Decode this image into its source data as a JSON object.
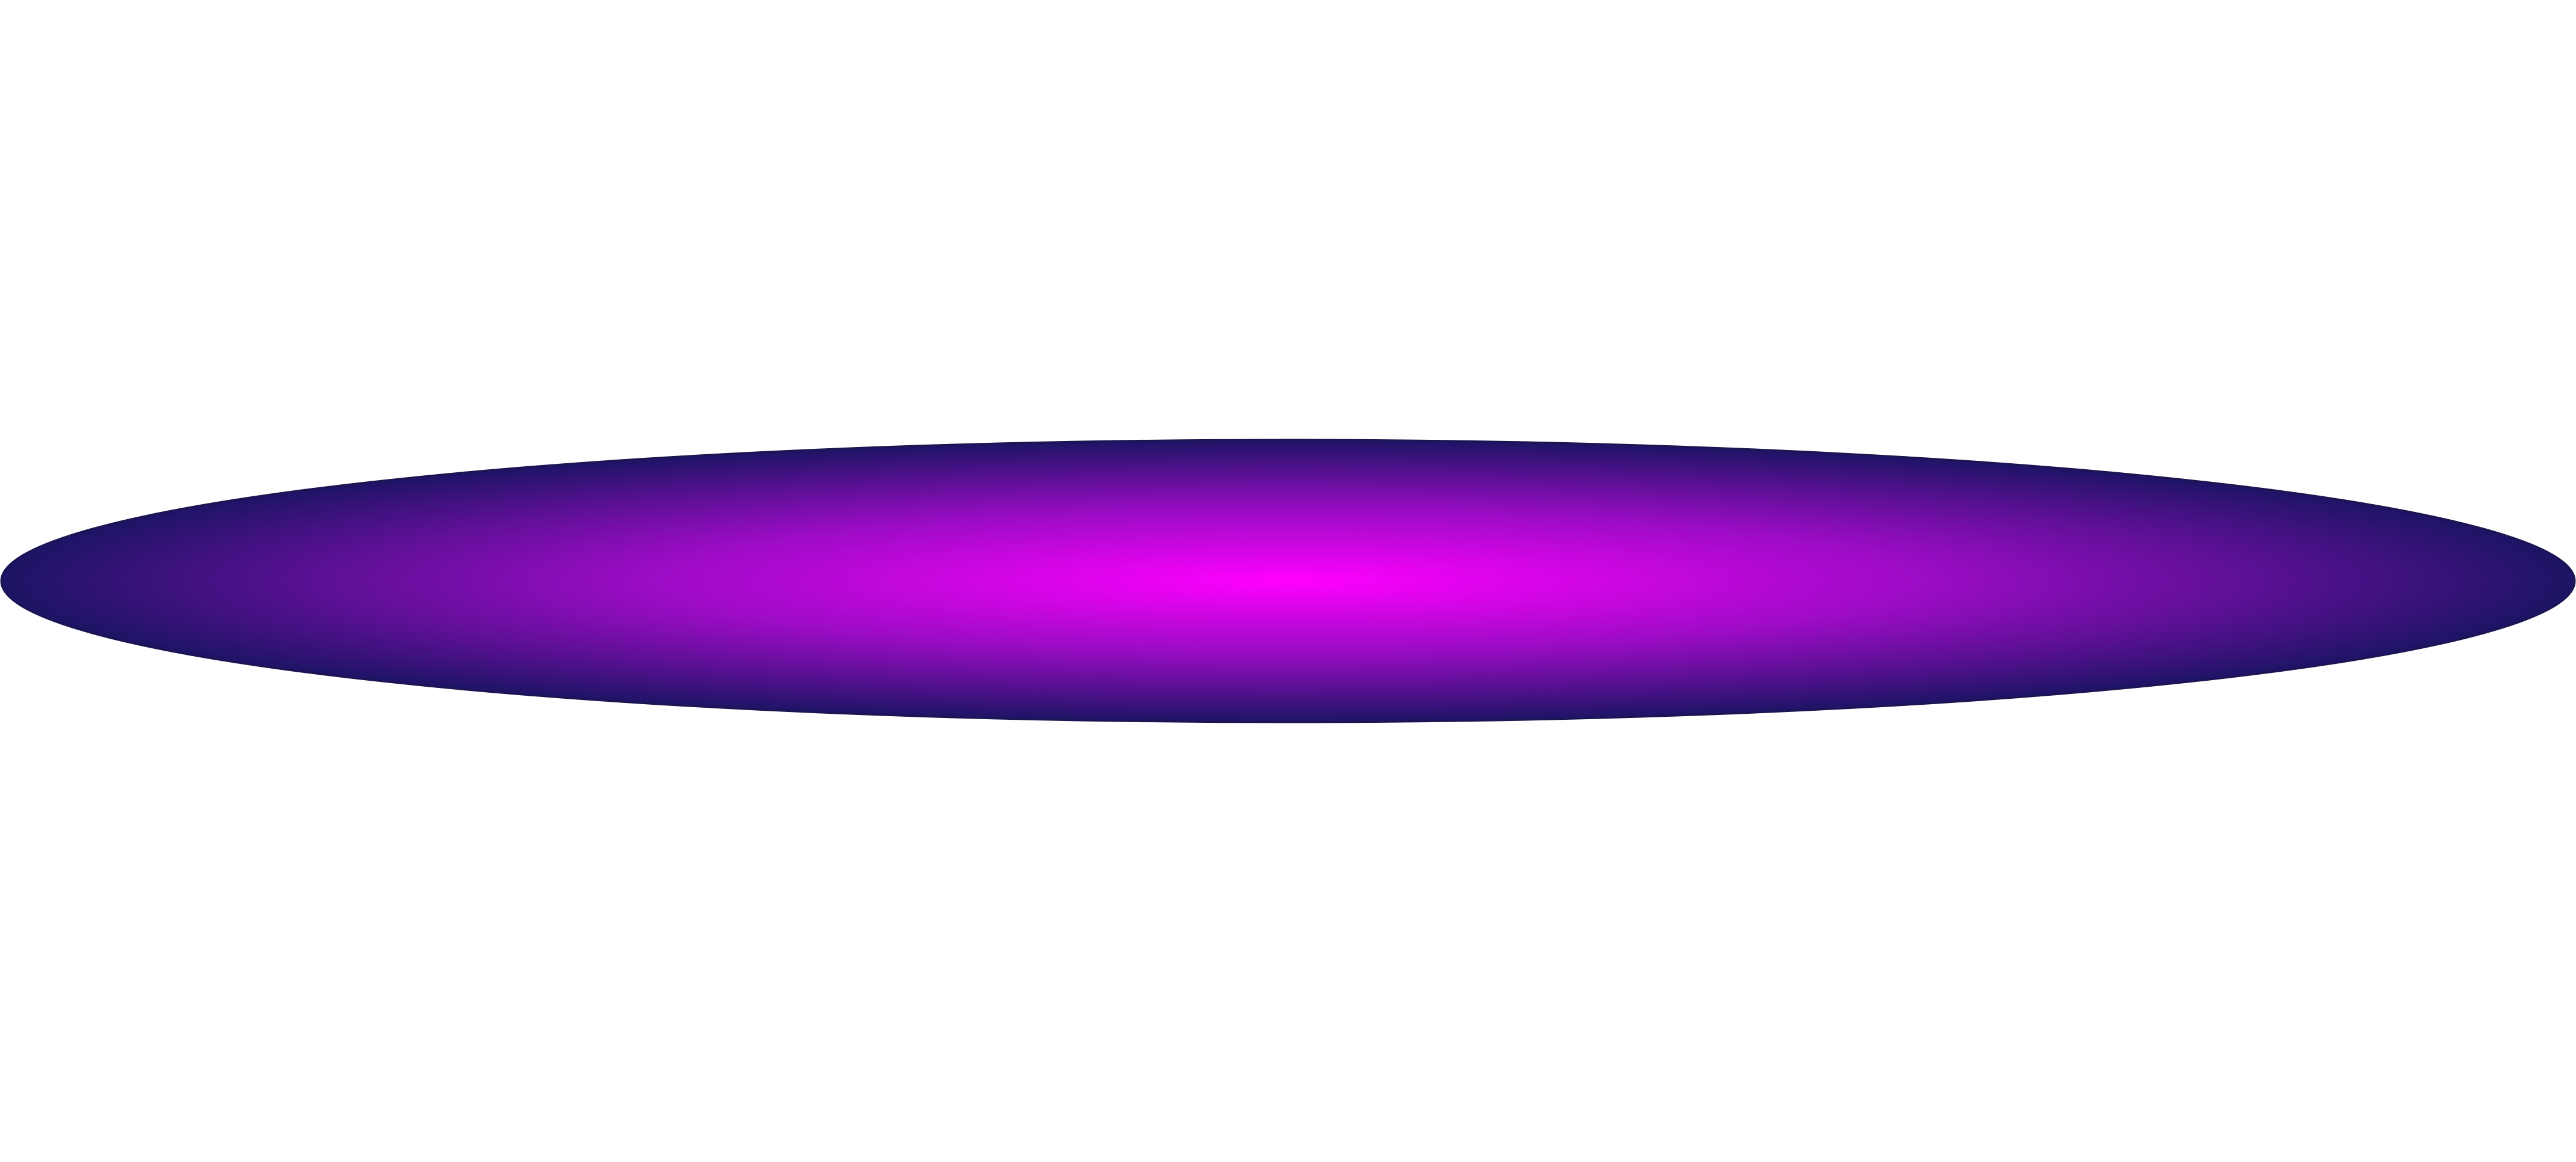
{
  "shape": {
    "kind": "ellipse",
    "fill": "radial-gradient",
    "colors": {
      "center": "#ff00ff",
      "mid": "#9a0cc4",
      "edge": "#1c1464"
    },
    "outline_color": "#1a1450"
  }
}
